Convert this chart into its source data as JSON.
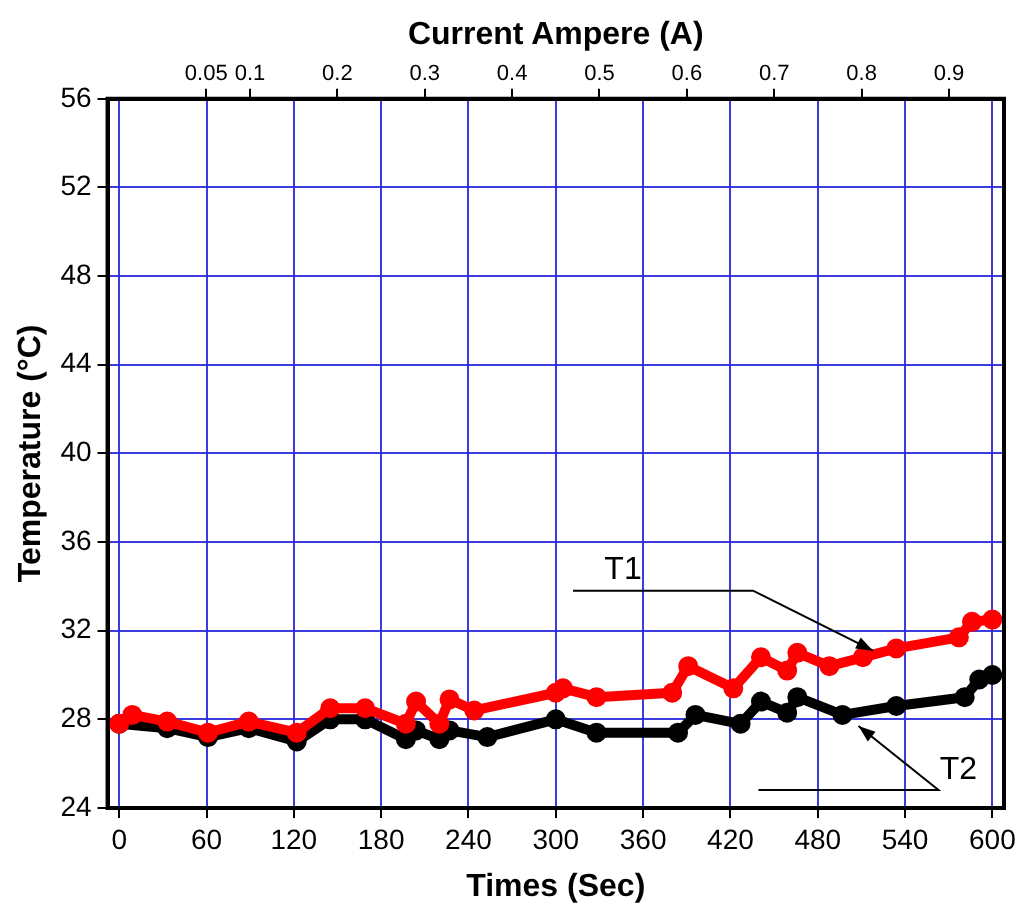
{
  "chart_data": {
    "type": "line",
    "xlabel": "Times (Sec)",
    "ylabel": "Temperature (°C)",
    "x2label": "Current Ampere (A)",
    "xlim": [
      -8,
      608
    ],
    "xticks": [
      0,
      60,
      120,
      180,
      240,
      300,
      360,
      420,
      480,
      540,
      600
    ],
    "x2lim": [
      -0.063,
      0.963
    ],
    "x2ticks": [
      0.05,
      0.1,
      0.2,
      0.3,
      0.4,
      0.5,
      0.6,
      0.7,
      0.8,
      0.9
    ],
    "ylim": [
      24,
      56
    ],
    "yticks": [
      24,
      28,
      32,
      36,
      40,
      44,
      48,
      52,
      56
    ],
    "grid": true,
    "legend": false,
    "marker": "circle",
    "line_style": "solid",
    "series": [
      {
        "color": "#ff0000",
        "x": [
          0,
          9,
          33,
          61,
          89,
          122,
          145,
          169,
          197,
          204,
          220,
          227,
          244,
          300,
          305,
          328,
          380,
          391,
          422,
          441,
          459,
          466,
          488,
          511,
          534,
          577,
          586,
          600
        ],
        "values": [
          27.8,
          28.2,
          27.9,
          27.4,
          27.9,
          27.4,
          28.5,
          28.5,
          27.8,
          28.8,
          27.8,
          28.9,
          28.4,
          29.2,
          29.4,
          29.0,
          29.2,
          30.4,
          29.4,
          30.8,
          30.2,
          31.0,
          30.4,
          30.8,
          31.2,
          31.7,
          32.4,
          32.5
        ]
      },
      {
        "color": "#000000",
        "x": [
          0,
          33,
          61,
          89,
          122,
          145,
          169,
          197,
          204,
          220,
          227,
          253,
          300,
          328,
          384,
          396,
          427,
          441,
          459,
          466,
          497,
          534,
          581,
          591,
          600
        ],
        "values": [
          27.8,
          27.6,
          27.2,
          27.6,
          27.0,
          28.0,
          28.0,
          27.1,
          27.5,
          27.1,
          27.5,
          27.2,
          28.0,
          27.4,
          27.4,
          28.2,
          27.8,
          28.8,
          28.3,
          29.0,
          28.2,
          28.6,
          29.0,
          29.8,
          30.0
        ]
      }
    ],
    "annotations": [
      {
        "text": "T1",
        "x": 518,
        "y": 31.1
      },
      {
        "text": "T2",
        "x": 508,
        "y": 27.7
      }
    ]
  }
}
